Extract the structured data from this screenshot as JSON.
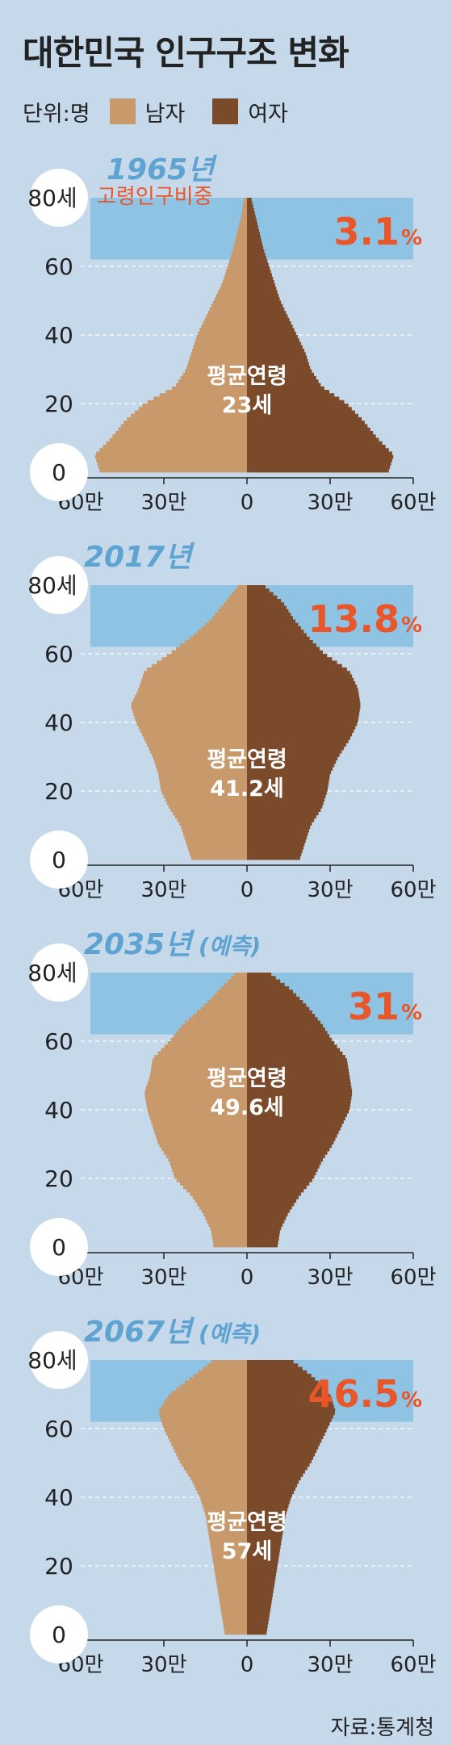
{
  "title": "대한민국 인구구조 변화",
  "legend": {
    "unit": "단위:명",
    "male": "남자",
    "female": "여자"
  },
  "colors": {
    "male": "#c8996b",
    "female": "#7b4a2a",
    "band": "#8ec3e3",
    "pct": "#e8562a",
    "year": "#5fa3d3",
    "background": "#c5d9ea"
  },
  "elderly_label": "고령인구비중",
  "avg_label": "평균연령",
  "source": "자료:통계청",
  "chart_data": [
    {
      "type": "population-pyramid",
      "year": "1965년",
      "projection": "",
      "elderly_share": "3.1",
      "pct_sign": "%",
      "mean_age": "23세",
      "y_ticks": [
        "0",
        "20",
        "40",
        "60",
        "80세"
      ],
      "x_ticks": [
        "60만",
        "30만",
        "0",
        "30만",
        "60만"
      ],
      "xlim": [
        -600000,
        600000
      ],
      "ylim": [
        0,
        80
      ],
      "male": [
        [
          0,
          53
        ],
        [
          5,
          55
        ],
        [
          10,
          49
        ],
        [
          15,
          44
        ],
        [
          20,
          37
        ],
        [
          25,
          26
        ],
        [
          30,
          22
        ],
        [
          35,
          20
        ],
        [
          40,
          18
        ],
        [
          45,
          15
        ],
        [
          50,
          12
        ],
        [
          55,
          9
        ],
        [
          60,
          7
        ],
        [
          65,
          5
        ],
        [
          70,
          3.5
        ],
        [
          75,
          2
        ],
        [
          80,
          1
        ]
      ],
      "female": [
        [
          0,
          51
        ],
        [
          5,
          53
        ],
        [
          10,
          47
        ],
        [
          15,
          42
        ],
        [
          20,
          36
        ],
        [
          25,
          27
        ],
        [
          30,
          23
        ],
        [
          35,
          21
        ],
        [
          40,
          18
        ],
        [
          45,
          15
        ],
        [
          50,
          12
        ],
        [
          55,
          10
        ],
        [
          60,
          8
        ],
        [
          65,
          6
        ],
        [
          70,
          4.5
        ],
        [
          75,
          3
        ],
        [
          80,
          1.5
        ]
      ]
    },
    {
      "type": "population-pyramid",
      "year": "2017년",
      "projection": "",
      "elderly_share": "13.8",
      "pct_sign": "%",
      "mean_age": "41.2세",
      "y_ticks": [
        "0",
        "20",
        "40",
        "60",
        "80세"
      ],
      "x_ticks": [
        "60만",
        "30만",
        "0",
        "30만",
        "60만"
      ],
      "xlim": [
        -600000,
        600000
      ],
      "ylim": [
        0,
        80
      ],
      "male": [
        [
          0,
          20
        ],
        [
          5,
          22
        ],
        [
          10,
          24
        ],
        [
          15,
          28
        ],
        [
          20,
          31
        ],
        [
          25,
          32
        ],
        [
          30,
          34
        ],
        [
          35,
          37
        ],
        [
          40,
          40
        ],
        [
          45,
          42
        ],
        [
          50,
          39
        ],
        [
          55,
          37
        ],
        [
          60,
          28
        ],
        [
          65,
          20
        ],
        [
          70,
          13
        ],
        [
          75,
          8
        ],
        [
          80,
          3
        ]
      ],
      "female": [
        [
          0,
          19
        ],
        [
          5,
          21
        ],
        [
          10,
          23
        ],
        [
          15,
          27
        ],
        [
          20,
          29
        ],
        [
          25,
          30
        ],
        [
          30,
          33
        ],
        [
          35,
          37
        ],
        [
          40,
          40
        ],
        [
          45,
          41
        ],
        [
          50,
          40
        ],
        [
          55,
          37
        ],
        [
          60,
          28
        ],
        [
          65,
          22
        ],
        [
          70,
          17
        ],
        [
          75,
          13
        ],
        [
          80,
          6
        ]
      ]
    },
    {
      "type": "population-pyramid",
      "year": "2035년",
      "projection": "(예측)",
      "elderly_share": "31",
      "pct_sign": "%",
      "mean_age": "49.6세",
      "y_ticks": [
        "0",
        "20",
        "40",
        "60",
        "80세"
      ],
      "x_ticks": [
        "60만",
        "30만",
        "0",
        "30만",
        "60만"
      ],
      "xlim": [
        -600000,
        600000
      ],
      "ylim": [
        0,
        80
      ],
      "male": [
        [
          0,
          12
        ],
        [
          5,
          13
        ],
        [
          10,
          16
        ],
        [
          15,
          20
        ],
        [
          20,
          26
        ],
        [
          25,
          28
        ],
        [
          30,
          32
        ],
        [
          35,
          34
        ],
        [
          40,
          36
        ],
        [
          45,
          37
        ],
        [
          50,
          35
        ],
        [
          55,
          34
        ],
        [
          60,
          28
        ],
        [
          65,
          23
        ],
        [
          70,
          16
        ],
        [
          75,
          10
        ],
        [
          80,
          4
        ]
      ],
      "female": [
        [
          0,
          11
        ],
        [
          5,
          12
        ],
        [
          10,
          15
        ],
        [
          15,
          19
        ],
        [
          20,
          24
        ],
        [
          25,
          27
        ],
        [
          30,
          31
        ],
        [
          35,
          34
        ],
        [
          40,
          37
        ],
        [
          45,
          38
        ],
        [
          50,
          37
        ],
        [
          55,
          36
        ],
        [
          60,
          31
        ],
        [
          65,
          27
        ],
        [
          70,
          22
        ],
        [
          75,
          16
        ],
        [
          80,
          8
        ]
      ]
    },
    {
      "type": "population-pyramid",
      "year": "2067년",
      "projection": "(예측)",
      "elderly_share": "46.5",
      "pct_sign": "%",
      "mean_age": "57세",
      "y_ticks": [
        "0",
        "20",
        "40",
        "60",
        "80세"
      ],
      "x_ticks": [
        "60만",
        "30만",
        "0",
        "30만",
        "60만"
      ],
      "xlim": [
        -600000,
        600000
      ],
      "ylim": [
        0,
        80
      ],
      "male": [
        [
          0,
          8
        ],
        [
          5,
          9
        ],
        [
          10,
          10
        ],
        [
          15,
          11
        ],
        [
          20,
          12
        ],
        [
          25,
          13
        ],
        [
          30,
          14
        ],
        [
          35,
          15
        ],
        [
          40,
          17
        ],
        [
          45,
          20
        ],
        [
          50,
          24
        ],
        [
          55,
          27
        ],
        [
          60,
          30
        ],
        [
          65,
          32
        ],
        [
          70,
          28
        ],
        [
          75,
          20
        ],
        [
          80,
          12
        ]
      ],
      "female": [
        [
          0,
          7
        ],
        [
          5,
          8
        ],
        [
          10,
          9
        ],
        [
          15,
          10
        ],
        [
          20,
          11
        ],
        [
          25,
          12
        ],
        [
          30,
          13
        ],
        [
          35,
          14
        ],
        [
          40,
          16
        ],
        [
          45,
          19
        ],
        [
          50,
          23
        ],
        [
          55,
          26
        ],
        [
          60,
          29
        ],
        [
          65,
          32
        ],
        [
          70,
          30
        ],
        [
          75,
          24
        ],
        [
          80,
          16
        ]
      ]
    }
  ]
}
